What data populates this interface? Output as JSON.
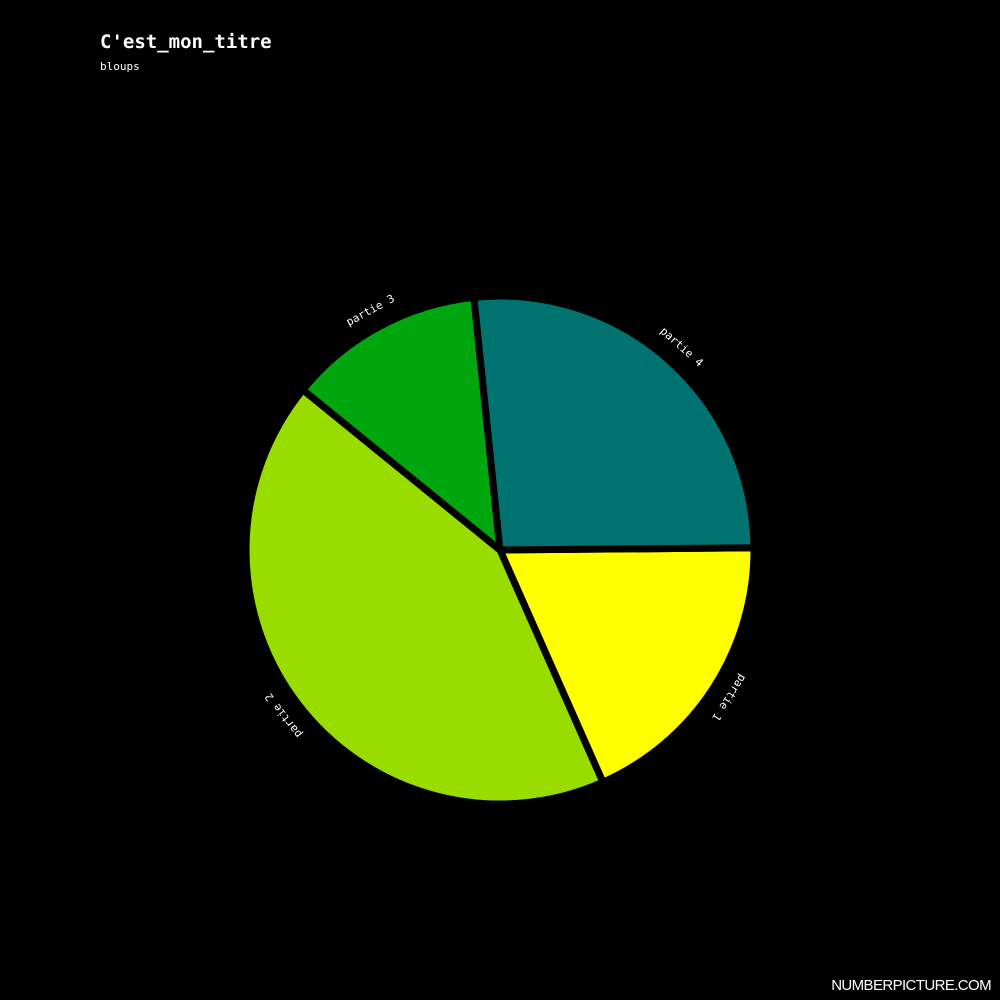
{
  "chart_data": {
    "type": "pie",
    "title": "C'est_mon_titre",
    "subtitle": "bloups",
    "slices": [
      {
        "label": "partie 1",
        "value": 18.5,
        "color": "#ffff00"
      },
      {
        "label": "partie 2",
        "value": 42.5,
        "color": "#99dd00"
      },
      {
        "label": "partie 3",
        "value": 12.5,
        "color": "#00a60e"
      },
      {
        "label": "partie 4",
        "value": 26.5,
        "color": "#007370"
      }
    ],
    "background": "#000000"
  },
  "watermark": "NUMBERPICTURE.COM"
}
